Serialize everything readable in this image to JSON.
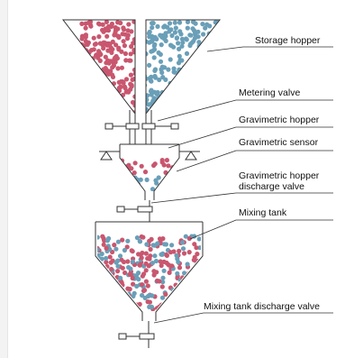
{
  "labels": {
    "storage_hopper": "Storage hopper",
    "metering_valve": "Metering valve",
    "gravimetric_hopper": "Gravimetric hopper",
    "gravimetric_sensor": "Gravimetric sensor",
    "discharge_valve_line1": "Gravimetric hopper",
    "discharge_valve_line2": "discharge valve",
    "mixing_tank": "Mixing tank",
    "mixing_tank_discharge_valve": "Mixing tank discharge valve"
  },
  "colors": {
    "red_particle": "#c9566f",
    "blue_particle": "#6a9fb8",
    "outline": "#333333",
    "frame_bg": "#f3f3f3"
  }
}
